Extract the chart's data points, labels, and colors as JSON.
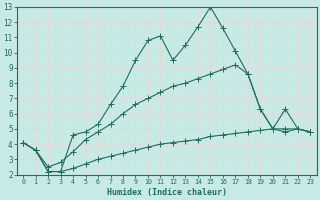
{
  "xlabel": "Humidex (Indice chaleur)",
  "xlim": [
    -0.5,
    23.5
  ],
  "ylim": [
    2,
    13
  ],
  "xticks": [
    0,
    1,
    2,
    3,
    4,
    5,
    6,
    7,
    8,
    9,
    10,
    11,
    12,
    13,
    14,
    15,
    16,
    17,
    18,
    19,
    20,
    21,
    22,
    23
  ],
  "yticks": [
    2,
    3,
    4,
    5,
    6,
    7,
    8,
    9,
    10,
    11,
    12,
    13
  ],
  "bg_color": "#c8eae4",
  "grid_color": "#e8d8d8",
  "line_color": "#1e6e62",
  "line1_x": [
    0,
    1,
    2,
    3,
    4,
    5,
    6,
    7,
    8,
    9,
    10,
    11,
    12,
    13,
    14,
    15,
    16,
    17,
    18,
    19,
    20,
    21,
    22,
    23
  ],
  "line1_y": [
    4.1,
    3.6,
    2.2,
    2.2,
    4.6,
    4.8,
    5.3,
    6.6,
    7.8,
    9.5,
    10.8,
    11.1,
    9.5,
    10.5,
    11.7,
    13.0,
    11.6,
    10.1,
    8.6,
    6.3,
    5.0,
    6.3,
    5.0,
    4.8
  ],
  "line2_x": [
    0,
    1,
    2,
    3,
    4,
    5,
    6,
    7,
    8,
    9,
    10,
    11,
    12,
    13,
    14,
    15,
    16,
    17,
    18,
    19,
    20,
    21,
    22,
    23
  ],
  "line2_y": [
    4.1,
    3.6,
    2.5,
    2.8,
    3.5,
    4.3,
    4.8,
    5.3,
    6.0,
    6.6,
    7.0,
    7.4,
    7.8,
    8.0,
    8.3,
    8.6,
    8.9,
    9.2,
    8.6,
    6.3,
    5.0,
    4.8,
    5.0,
    4.8
  ],
  "line3_x": [
    0,
    1,
    2,
    3,
    4,
    5,
    6,
    7,
    8,
    9,
    10,
    11,
    12,
    13,
    14,
    15,
    16,
    17,
    18,
    19,
    20,
    21,
    22,
    23
  ],
  "line3_y": [
    4.1,
    3.6,
    2.2,
    2.2,
    2.4,
    2.7,
    3.0,
    3.2,
    3.4,
    3.6,
    3.8,
    4.0,
    4.1,
    4.2,
    4.3,
    4.5,
    4.6,
    4.7,
    4.8,
    4.9,
    5.0,
    5.0,
    5.0,
    4.8
  ],
  "markersize": 2.0,
  "linewidth": 0.8
}
